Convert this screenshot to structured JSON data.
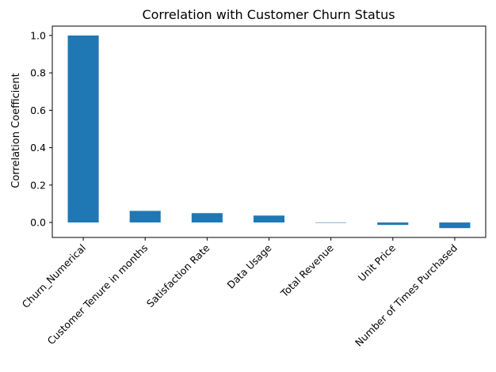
{
  "chart_data": {
    "type": "bar",
    "title": "Correlation with Customer Churn Status",
    "xlabel": "",
    "ylabel": "Correlation Coefficient",
    "categories": [
      "Churn_Numerical",
      "Customer Tenure in months",
      "Satisfaction Rate",
      "Data Usage",
      "Total Revenue",
      "Unit Price",
      "Number of Times Purchased"
    ],
    "values": [
      1.0,
      0.062,
      0.05,
      0.037,
      -0.002,
      -0.013,
      -0.03
    ],
    "ylim": [
      -0.08,
      1.05
    ],
    "yticks": [
      "0.0",
      "0.2",
      "0.4",
      "0.6",
      "0.8",
      "1.0"
    ],
    "bar_color": "#1f77b4",
    "grid": false,
    "legend": "none"
  }
}
